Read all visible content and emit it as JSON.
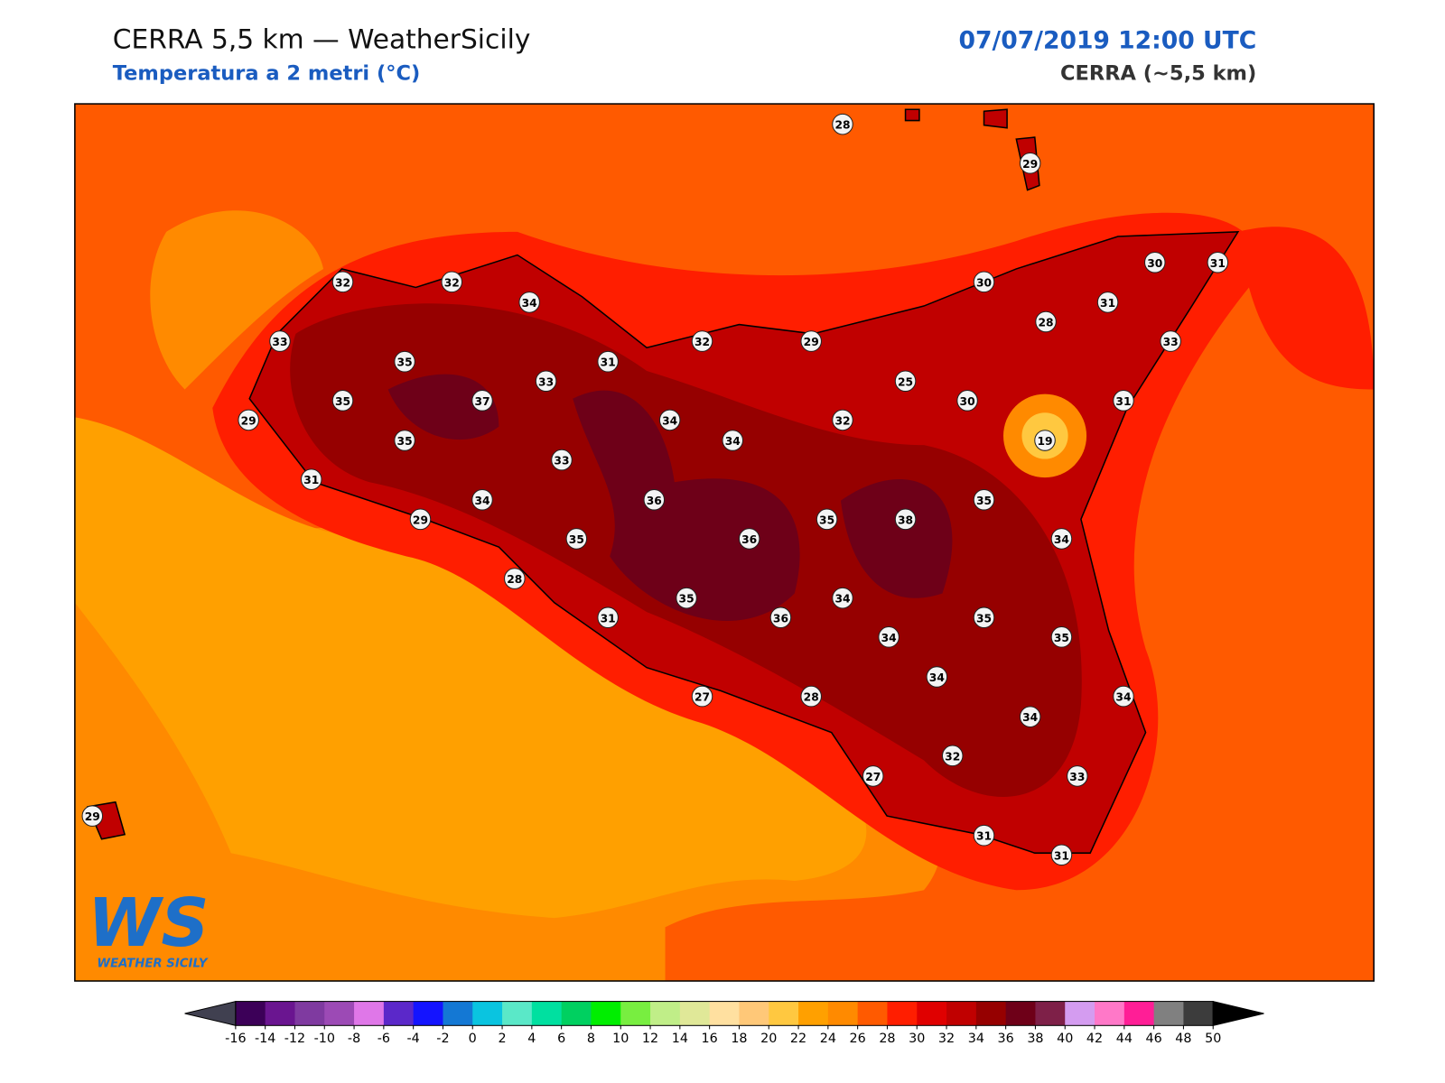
{
  "header": {
    "title": "CERRA 5,5 km — WeatherSicily",
    "subtitle": "Temperatura a 2 metri (°C)",
    "datetime": "07/07/2019 12:00 UTC",
    "model": "CERRA (~5,5 km)"
  },
  "stations": [
    28,
    29,
    32,
    32,
    34,
    33,
    35,
    31,
    32,
    29,
    30,
    30,
    31,
    31,
    28,
    33,
    33,
    25,
    35,
    37,
    30,
    31,
    29,
    34,
    34,
    32,
    35,
    19,
    33,
    31,
    34,
    36,
    35,
    29,
    35,
    36,
    35,
    38,
    34,
    28,
    35,
    34,
    31,
    36,
    35,
    34,
    35,
    34,
    34,
    27,
    28,
    34,
    32,
    27,
    33,
    29,
    31,
    31
  ],
  "logo": {
    "mark": "WS",
    "name": "WEATHER SICILY"
  },
  "colorbar": {
    "ticks": [
      -16,
      -14,
      -12,
      -10,
      -8,
      -6,
      -4,
      -2,
      0,
      2,
      4,
      6,
      8,
      10,
      12,
      14,
      16,
      18,
      20,
      22,
      24,
      26,
      28,
      30,
      32,
      34,
      36,
      38,
      40,
      42,
      44,
      46,
      48,
      50
    ],
    "colors": [
      "#3c0058",
      "#6a1590",
      "#7f3aa0",
      "#9c4ab5",
      "#df77e8",
      "#5b28c9",
      "#1414ff",
      "#1478d4",
      "#0ac4e0",
      "#5ae8c8",
      "#00e0a0",
      "#00d060",
      "#00ee00",
      "#78ee40",
      "#c0ee88",
      "#e0e898",
      "#ffe0a0",
      "#ffc878",
      "#ffc840",
      "#ffa000",
      "#ff8a00",
      "#ff5a00",
      "#ff1e00",
      "#e00000",
      "#c00000",
      "#960000",
      "#6e0018",
      "#7e2048",
      "#d49cf0",
      "#ff78c8",
      "#ff1e96",
      "#808080",
      "#3c3c3c"
    ],
    "under_color": "#404050",
    "over_color": "#000000"
  }
}
